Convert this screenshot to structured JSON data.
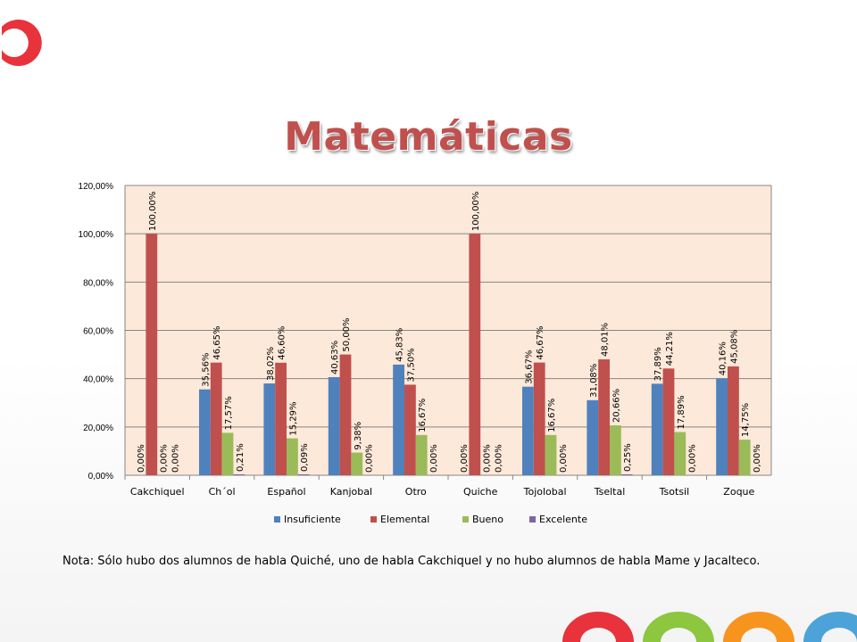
{
  "slide": {
    "title": "Matemáticas",
    "note": "Nota: Sólo hubo dos alumnos de habla Quiché, uno de habla Cakchiquel y no hubo alumnos de habla Mame y Jacalteco."
  },
  "colors": {
    "plot_background": "#fde9d9",
    "title": "#c0504d",
    "deco_red": "#e8323c",
    "deco_green": "#8dc63f",
    "deco_orange": "#f7941d",
    "deco_blue": "#4ba3d9"
  },
  "chart_data": {
    "type": "bar",
    "categories": [
      "Cakchiquel",
      "Ch´ol",
      "Español",
      "Kanjobal",
      "Otro",
      "Quiche",
      "Tojolobal",
      "Tseltal",
      "Tsotsil",
      "Zoque"
    ],
    "series": [
      {
        "name": "Insuficiente",
        "color": "#4f81bd",
        "values": [
          0,
          35.56,
          38.02,
          40.63,
          45.83,
          0,
          36.67,
          31.08,
          37.89,
          40.16
        ],
        "labels": [
          "0,00%",
          "35,56%",
          "38,02%",
          "40,63%",
          "45,83%",
          "0,00%",
          "36,67%",
          "31,08%",
          "37,89%",
          "40,16%"
        ]
      },
      {
        "name": "Elemental",
        "color": "#c0504d",
        "values": [
          100,
          46.65,
          46.6,
          50,
          37.5,
          100,
          46.67,
          48.01,
          44.21,
          45.08
        ],
        "labels": [
          "100,00%",
          "46,65%",
          "46,60%",
          "50,00%",
          "37,50%",
          "100,00%",
          "46,67%",
          "48,01%",
          "44,21%",
          "45,08%"
        ]
      },
      {
        "name": "Bueno",
        "color": "#9bbb59",
        "values": [
          0,
          17.57,
          15.29,
          9.38,
          16.67,
          0,
          16.67,
          20.66,
          17.89,
          14.75
        ],
        "labels": [
          "0,00%",
          "17,57%",
          "15,29%",
          "9,38%",
          "16,67%",
          "0,00%",
          "16,67%",
          "20,66%",
          "17,89%",
          "14,75%"
        ]
      },
      {
        "name": "Excelente",
        "color": "#8064a2",
        "values": [
          0,
          0.21,
          0.09,
          0,
          0,
          0,
          0,
          0.25,
          0,
          0
        ],
        "labels": [
          "0,00%",
          "0,21%",
          "0,09%",
          "0,00%",
          "0,00%",
          "0,00%",
          "0,00%",
          "0,25%",
          "0,00%",
          "0,00%"
        ]
      }
    ],
    "yticks": [
      "0,00%",
      "20,00%",
      "40,00%",
      "60,00%",
      "80,00%",
      "100,00%",
      "120,00%"
    ],
    "ylim": [
      0,
      120
    ],
    "grid": true,
    "legend_position": "bottom",
    "data_labels": "vertical"
  }
}
